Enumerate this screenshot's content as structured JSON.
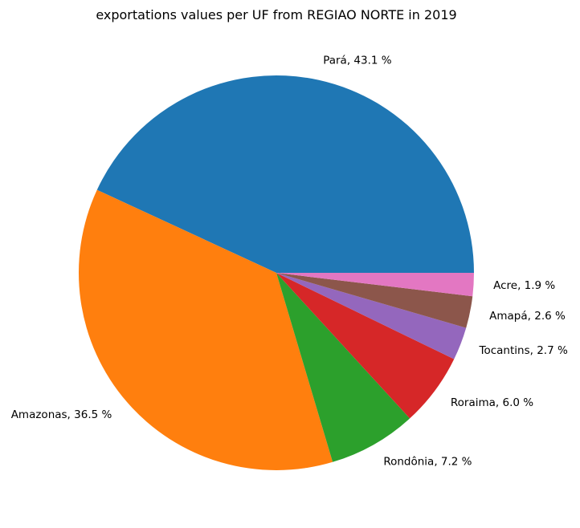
{
  "chart_data": {
    "type": "pie",
    "title": "exportations values per UF from REGIAO NORTE in 2019",
    "start_angle_deg": 0,
    "direction": "counterclockwise",
    "slices": [
      {
        "name": "Pará",
        "value": 43.1,
        "label": "Pará, 43.1 %",
        "color": "#1f77b4"
      },
      {
        "name": "Amazonas",
        "value": 36.5,
        "label": "Amazonas, 36.5 %",
        "color": "#ff7f0e"
      },
      {
        "name": "Rondônia",
        "value": 7.2,
        "label": "Rondônia, 7.2 %",
        "color": "#2ca02c"
      },
      {
        "name": "Roraima",
        "value": 6.0,
        "label": "Roraima, 6.0 %",
        "color": "#d62728"
      },
      {
        "name": "Tocantins",
        "value": 2.7,
        "label": "Tocantins, 2.7 %",
        "color": "#9467bd"
      },
      {
        "name": "Amapá",
        "value": 2.6,
        "label": "Amapá, 2.6 %",
        "color": "#8c564b"
      },
      {
        "name": "Acre",
        "value": 1.9,
        "label": "Acre, 1.9 %",
        "color": "#e377c2"
      }
    ]
  }
}
